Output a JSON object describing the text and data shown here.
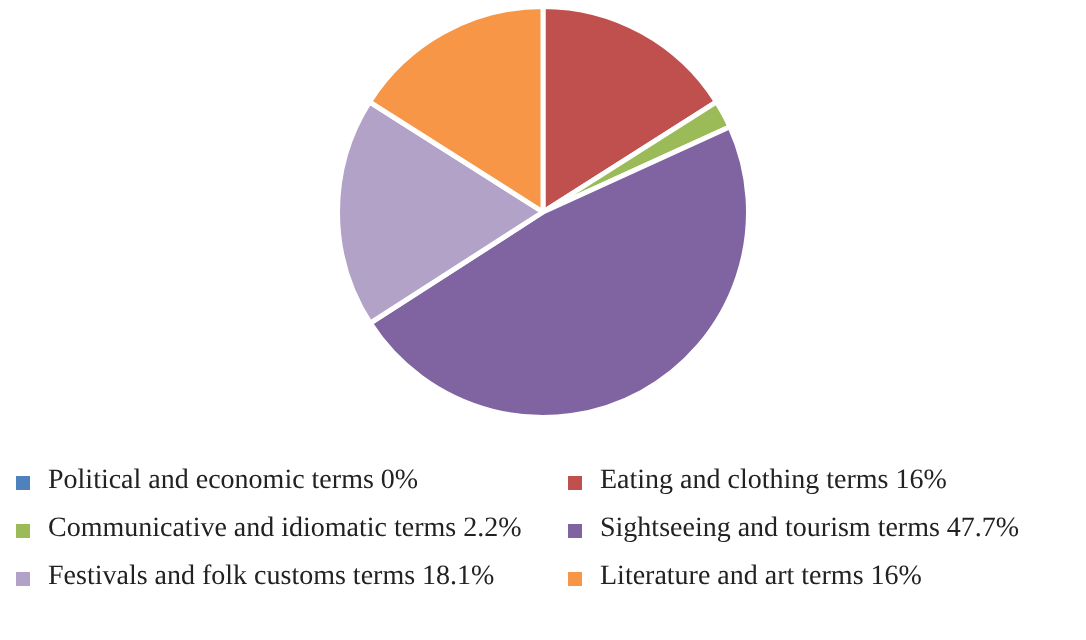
{
  "chart_data": {
    "type": "pie",
    "categories": [
      "Political and economic terms 0%",
      "Eating and clothing terms 16%",
      "Communicative and idiomatic terms 2.2%",
      "Sightseeing and tourism terms 47.7%",
      "Festivals and folk customs terms 18.1%",
      "Literature and art terms 16%"
    ],
    "values": [
      0,
      16,
      2.2,
      47.7,
      18.1,
      16
    ],
    "colors": [
      "#4f81bd",
      "#c0504d",
      "#9bbb59",
      "#8064a2",
      "#b3a2c7",
      "#f79646"
    ],
    "legend": "bottom"
  }
}
